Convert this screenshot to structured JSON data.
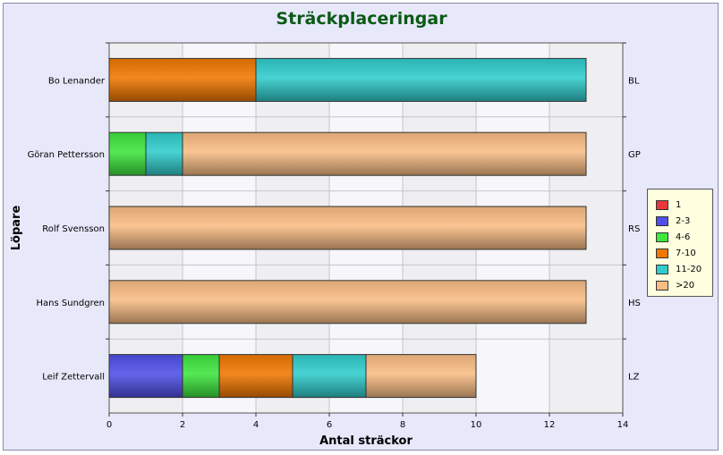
{
  "chart_data": {
    "type": "bar",
    "orientation": "horizontal",
    "stacked": true,
    "title": "Sträckplaceringar",
    "xlabel": "Antal sträckor",
    "ylabel": "Löpare",
    "xlim": [
      0,
      14
    ],
    "xticks": [
      "0",
      "2",
      "4",
      "6",
      "8",
      "10",
      "12",
      "14"
    ],
    "grid": true,
    "legend_position": "right",
    "categories": [
      "Bo Lenander",
      "Göran Pettersson",
      "Rolf Svensson",
      "Hans Sundgren",
      "Leif Zettervall"
    ],
    "secondary_labels": [
      "BL",
      "GP",
      "RS",
      "HS",
      "LZ"
    ],
    "series": [
      {
        "name": "1",
        "color": "#e83838",
        "values": [
          0,
          0,
          0,
          0,
          0
        ]
      },
      {
        "name": "2-3",
        "color": "#5050e8",
        "values": [
          0,
          0,
          0,
          0,
          2
        ]
      },
      {
        "name": "4-6",
        "color": "#3ee63e",
        "values": [
          0,
          1,
          0,
          0,
          1
        ]
      },
      {
        "name": "7-10",
        "color": "#f07800",
        "values": [
          4,
          0,
          0,
          0,
          2
        ]
      },
      {
        "name": "11-20",
        "color": "#30cccc",
        "values": [
          9,
          1,
          0,
          0,
          2
        ]
      },
      {
        "name": ">20",
        "color": "#f9bd84",
        "values": [
          0,
          11,
          13,
          13,
          3
        ]
      }
    ]
  }
}
